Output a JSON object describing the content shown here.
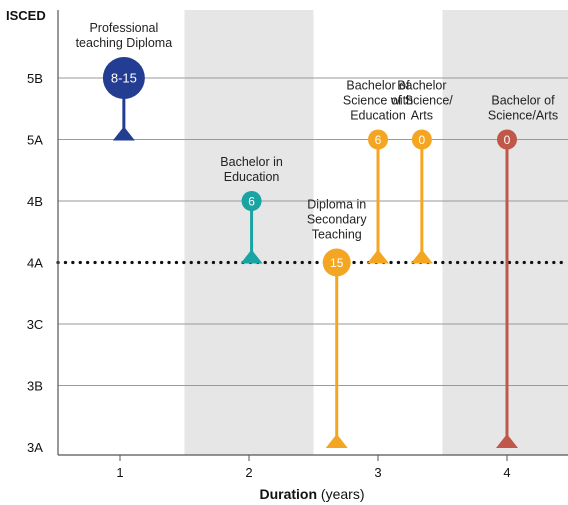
{
  "chart_data": {
    "type": "lollipop",
    "ylabel": "ISCED",
    "xlabel_bold": "Duration",
    "xlabel_rest": " (years)",
    "x_ticks": [
      "1",
      "2",
      "3",
      "4"
    ],
    "xlim": [
      0.5,
      4.5
    ],
    "shaded_bands": [
      [
        2,
        3
      ],
      [
        4,
        4.5
      ]
    ],
    "y_levels": [
      "3A",
      "3B",
      "3C",
      "4A",
      "4B",
      "5A",
      "5B"
    ],
    "threshold_level": "4A",
    "series": [
      {
        "label": [
          "Professional",
          "teaching Diploma"
        ],
        "x": 1.03,
        "start": "5A",
        "end": "5B",
        "badge": "8-15",
        "color": "#233d92",
        "size": "big"
      },
      {
        "label": [
          "Bachelor in",
          "Education"
        ],
        "x": 2.02,
        "start": "4A",
        "end": "4B",
        "badge": "6",
        "color": "#1aa3a3",
        "size": "small"
      },
      {
        "label": [
          "Diploma in",
          "Secondary",
          "Teaching"
        ],
        "x": 2.68,
        "start": "3A",
        "end": "4A",
        "badge": "15",
        "color": "#f4a623",
        "size": "mid"
      },
      {
        "label": [
          "Bachelor of",
          "Science with",
          "Education"
        ],
        "x": 3.0,
        "start": "4A",
        "end": "5A",
        "badge": "6",
        "color": "#f4a623",
        "size": "small"
      },
      {
        "label": [
          "Bachelor",
          "of Science/",
          "Arts"
        ],
        "x": 3.34,
        "start": "4A",
        "end": "5A",
        "badge": "0",
        "color": "#f4a623",
        "size": "small"
      },
      {
        "label": [
          "Bachelor of",
          "Science/Arts"
        ],
        "x": 4.0,
        "start": "3A",
        "end": "5A",
        "badge": "0",
        "color": "#c0584a",
        "size": "small"
      }
    ]
  }
}
